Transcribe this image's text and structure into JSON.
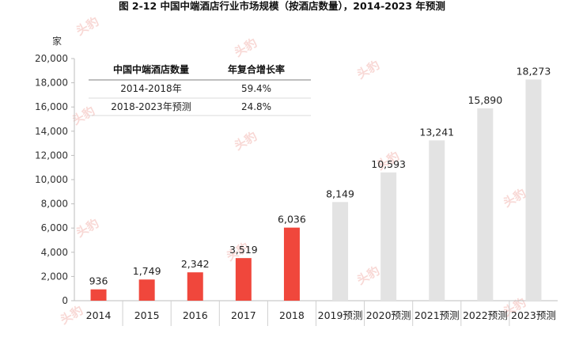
{
  "title": "图 2-12 中国中端酒店行业市场规模（按酒店数量），2014-2023 年预测",
  "chart_data": {
    "type": "bar",
    "title": "图 2-12 中国中端酒店行业市场规模（按酒店数量），2014-2023 年预测",
    "ylabel": "家",
    "ylim": [
      0,
      20000
    ],
    "yticks": [
      0,
      2000,
      4000,
      6000,
      8000,
      10000,
      12000,
      14000,
      16000,
      18000,
      20000
    ],
    "ytick_labels": [
      "0",
      "2,000",
      "4,000",
      "6,000",
      "8,000",
      "10,000",
      "12,000",
      "14,000",
      "16,000",
      "18,000",
      "20,000"
    ],
    "categories": [
      "2014",
      "2015",
      "2016",
      "2017",
      "2018",
      "2019预测",
      "2020预测",
      "2021预测",
      "2022预测",
      "2023预测"
    ],
    "values": [
      936,
      1749,
      2342,
      3519,
      6036,
      8149,
      10593,
      13241,
      15890,
      18273
    ],
    "value_labels": [
      "936",
      "1,749",
      "2,342",
      "3,519",
      "6,036",
      "8,149",
      "10,593",
      "13,241",
      "15,890",
      "18,273"
    ],
    "is_forecast": [
      false,
      false,
      false,
      false,
      false,
      true,
      true,
      true,
      true,
      true
    ],
    "colors": {
      "actual": "#f0473c",
      "forecast": "#e3e3e3"
    },
    "grid": false
  },
  "growth_table": {
    "headers": [
      "中国中端酒店数量",
      "年复合增长率"
    ],
    "rows": [
      [
        "2014-2018年",
        "59.4%"
      ],
      [
        "2018-2023年预测",
        "24.8%"
      ]
    ]
  },
  "watermark": {
    "text": "头豹"
  }
}
